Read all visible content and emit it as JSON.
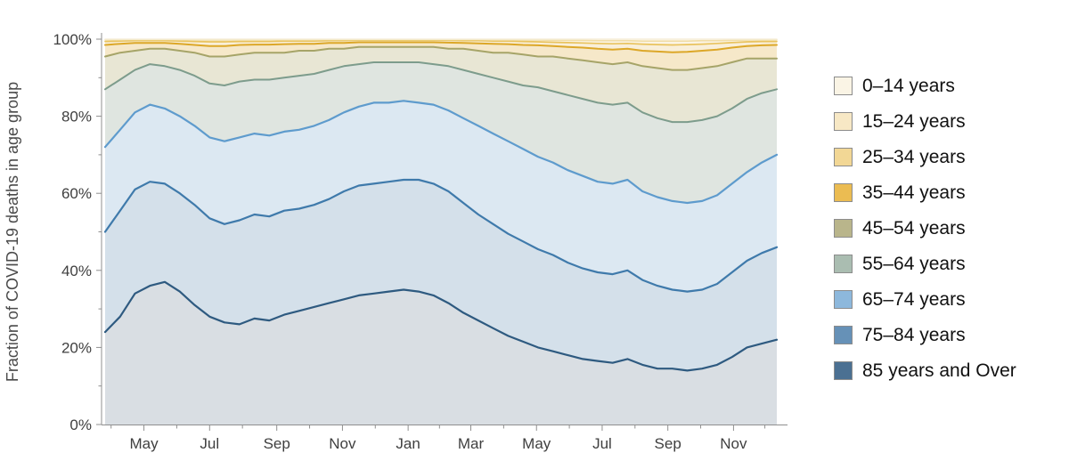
{
  "figure": {
    "background": "#ffffff",
    "axis_color": "#8f8f8f",
    "tick_label_color": "#3f3f3f",
    "y_title_color": "#4a4a4a"
  },
  "y_axis": {
    "label": "Fraction of COVID-19 deaths in age group",
    "range": [
      0,
      100
    ],
    "ticks": [
      {
        "value": 0,
        "label": "0%"
      },
      {
        "value": 20,
        "label": "20%"
      },
      {
        "value": 40,
        "label": "40%"
      },
      {
        "value": 60,
        "label": "60%"
      },
      {
        "value": 80,
        "label": "80%"
      },
      {
        "value": 100,
        "label": "100%"
      }
    ],
    "minor_tick_values": [
      10,
      30,
      50,
      70,
      90
    ]
  },
  "x_axis": {
    "range": [
      0,
      45
    ],
    "ticks": [
      {
        "pos": 2.6,
        "label": "May"
      },
      {
        "pos": 7.0,
        "label": "Jul"
      },
      {
        "pos": 11.5,
        "label": "Sep"
      },
      {
        "pos": 15.9,
        "label": "Nov"
      },
      {
        "pos": 20.3,
        "label": "Jan"
      },
      {
        "pos": 24.5,
        "label": "Mar"
      },
      {
        "pos": 28.9,
        "label": "May"
      },
      {
        "pos": 33.3,
        "label": "Jul"
      },
      {
        "pos": 37.7,
        "label": "Sep"
      },
      {
        "pos": 42.1,
        "label": "Nov"
      }
    ],
    "minor_tick_positions": [
      0.4,
      4.8,
      9.2,
      13.7,
      18.1,
      22.4,
      26.7,
      31.1,
      35.5,
      39.9,
      44.2
    ]
  },
  "legend": {
    "items": [
      {
        "label": "0–14 years",
        "color": "#faf4e5"
      },
      {
        "label": "15–24 years",
        "color": "#f7e8c5"
      },
      {
        "label": "25–34 years",
        "color": "#f2d795"
      },
      {
        "label": "35–44 years",
        "color": "#ebbc52"
      },
      {
        "label": "45–54 years",
        "color": "#b9b58b"
      },
      {
        "label": "55–64 years",
        "color": "#aabdb1"
      },
      {
        "label": "65–74 years",
        "color": "#8db8dc"
      },
      {
        "label": "75–84 years",
        "color": "#6691b7"
      },
      {
        "label": "85 years and Over",
        "color": "#4b7092"
      }
    ]
  },
  "chart_data": {
    "type": "area",
    "stacked": true,
    "normalized_percent": true,
    "title": "",
    "xlabel": "",
    "ylabel": "Fraction of COVID-19 deaths in age group",
    "ylim": [
      0,
      100
    ],
    "x_tick_labels": [
      "May",
      "Jul",
      "Sep",
      "Nov",
      "Jan",
      "Mar",
      "May",
      "Jul",
      "Sep",
      "Nov"
    ],
    "legend_position": "right",
    "grid": false,
    "note": "values are cumulative tops of each stacked band in percent, bottom band first; x is biweekly from ~Apr 2020 to ~Dec 2021",
    "series": [
      {
        "name": "85 years and Over",
        "line_color": "#2e5a80",
        "fill_color": "#d9dee3",
        "cumulative_values": [
          24,
          28,
          34,
          36,
          37,
          34.5,
          31,
          28,
          26.5,
          26,
          27.5,
          27,
          28.5,
          29.5,
          30.5,
          31.5,
          32.5,
          33.5,
          34,
          34.5,
          35,
          34.5,
          33.5,
          31.5,
          29,
          27,
          25,
          23,
          21.5,
          20,
          19,
          18,
          17,
          16.5,
          16,
          17,
          15.5,
          14.5,
          14.5,
          14,
          14.5,
          15.5,
          17.5,
          20,
          21,
          22
        ]
      },
      {
        "name": "75–84 years",
        "line_color": "#3f7aab",
        "fill_color": "#d4e0ea",
        "cumulative_values": [
          50,
          55.5,
          61,
          63,
          62.5,
          60,
          57,
          53.5,
          52,
          53,
          54.5,
          54,
          55.5,
          56,
          57,
          58.5,
          60.5,
          62,
          62.5,
          63,
          63.5,
          63.5,
          62.5,
          60.5,
          57.5,
          54.5,
          52,
          49.5,
          47.5,
          45.5,
          44,
          42,
          40.5,
          39.5,
          39,
          40,
          37.5,
          36,
          35,
          34.5,
          35,
          36.5,
          39.5,
          42.5,
          44.5,
          46
        ]
      },
      {
        "name": "65–74 years",
        "line_color": "#5e9bcd",
        "fill_color": "#dce8f2",
        "cumulative_values": [
          72,
          76.5,
          81,
          83,
          82,
          80,
          77.5,
          74.5,
          73.5,
          74.5,
          75.5,
          75,
          76,
          76.5,
          77.5,
          79,
          81,
          82.5,
          83.5,
          83.5,
          84,
          83.5,
          83,
          81.5,
          79.5,
          77.5,
          75.5,
          73.5,
          71.5,
          69.5,
          68,
          66,
          64.5,
          63,
          62.5,
          63.5,
          60.5,
          59,
          58,
          57.5,
          58,
          59.5,
          62.5,
          65.5,
          68,
          70
        ]
      },
      {
        "name": "55–64 years",
        "line_color": "#7d9c8c",
        "fill_color": "#dfe5e0",
        "cumulative_values": [
          87,
          89.5,
          92,
          93.5,
          93,
          92,
          90.5,
          88.5,
          88,
          89,
          89.5,
          89.5,
          90,
          90.5,
          91,
          92,
          93,
          93.5,
          94,
          94,
          94,
          94,
          93.5,
          93,
          92,
          91,
          90,
          89,
          88,
          87.5,
          86.5,
          85.5,
          84.5,
          83.5,
          83,
          83.5,
          81,
          79.5,
          78.5,
          78.5,
          79,
          80,
          82,
          84.5,
          86,
          87
        ]
      },
      {
        "name": "45–54 years",
        "line_color": "#a6a468",
        "fill_color": "#e8e6d4",
        "cumulative_values": [
          95.5,
          96.5,
          97,
          97.5,
          97.5,
          97,
          96.5,
          95.5,
          95.5,
          96,
          96.5,
          96.5,
          96.5,
          97,
          97,
          97.5,
          97.5,
          98,
          98,
          98,
          98,
          98,
          98,
          97.5,
          97.5,
          97,
          96.5,
          96.5,
          96,
          95.5,
          95.5,
          95,
          94.5,
          94,
          93.5,
          94,
          93,
          92.5,
          92,
          92,
          92.5,
          93,
          94,
          95,
          95,
          95
        ]
      },
      {
        "name": "35–44 years",
        "line_color": "#dca728",
        "fill_color": "#f6e8c9",
        "cumulative_values": [
          98.5,
          98.8,
          99,
          99,
          99,
          98.8,
          98.5,
          98.2,
          98.2,
          98.5,
          98.6,
          98.6,
          98.7,
          98.8,
          98.8,
          99,
          99,
          99.2,
          99.2,
          99.2,
          99.2,
          99.2,
          99.2,
          99.1,
          99,
          98.9,
          98.8,
          98.7,
          98.5,
          98.4,
          98.2,
          98,
          97.8,
          97.5,
          97.3,
          97.5,
          97,
          96.8,
          96.6,
          96.7,
          97,
          97.3,
          97.8,
          98.2,
          98.4,
          98.5
        ]
      },
      {
        "name": "25–34 years",
        "line_color": "#e9c35e",
        "fill_color": "#f9efd9",
        "cumulative_values": [
          99.4,
          99.5,
          99.6,
          99.6,
          99.6,
          99.5,
          99.4,
          99.3,
          99.3,
          99.4,
          99.4,
          99.4,
          99.5,
          99.5,
          99.5,
          99.6,
          99.6,
          99.7,
          99.7,
          99.7,
          99.7,
          99.7,
          99.7,
          99.7,
          99.6,
          99.6,
          99.5,
          99.5,
          99.4,
          99.3,
          99.2,
          99.1,
          99,
          98.9,
          98.8,
          98.9,
          98.7,
          98.6,
          98.5,
          98.6,
          98.7,
          98.9,
          99.1,
          99.3,
          99.4,
          99.4
        ]
      },
      {
        "name": "15–24 years",
        "line_color": "#f1dda6",
        "fill_color": "#fbf4e4",
        "cumulative_values": [
          99.8,
          99.9,
          99.9,
          99.9,
          99.9,
          99.9,
          99.8,
          99.8,
          99.8,
          99.8,
          99.8,
          99.8,
          99.9,
          99.9,
          99.9,
          99.9,
          99.9,
          99.9,
          99.9,
          99.9,
          99.9,
          99.9,
          99.9,
          99.9,
          99.9,
          99.9,
          99.8,
          99.8,
          99.8,
          99.8,
          99.7,
          99.7,
          99.7,
          99.6,
          99.6,
          99.6,
          99.5,
          99.5,
          99.5,
          99.5,
          99.6,
          99.6,
          99.7,
          99.8,
          99.8,
          99.8
        ]
      },
      {
        "name": "0–14 years",
        "line_color": "#f6eed8",
        "fill_color": "#fdfaf1",
        "cumulative_values": [
          100,
          100,
          100,
          100,
          100,
          100,
          100,
          100,
          100,
          100,
          100,
          100,
          100,
          100,
          100,
          100,
          100,
          100,
          100,
          100,
          100,
          100,
          100,
          100,
          100,
          100,
          100,
          100,
          100,
          100,
          100,
          100,
          100,
          100,
          100,
          100,
          100,
          100,
          100,
          100,
          100,
          100,
          100,
          100,
          100,
          100
        ]
      }
    ]
  }
}
